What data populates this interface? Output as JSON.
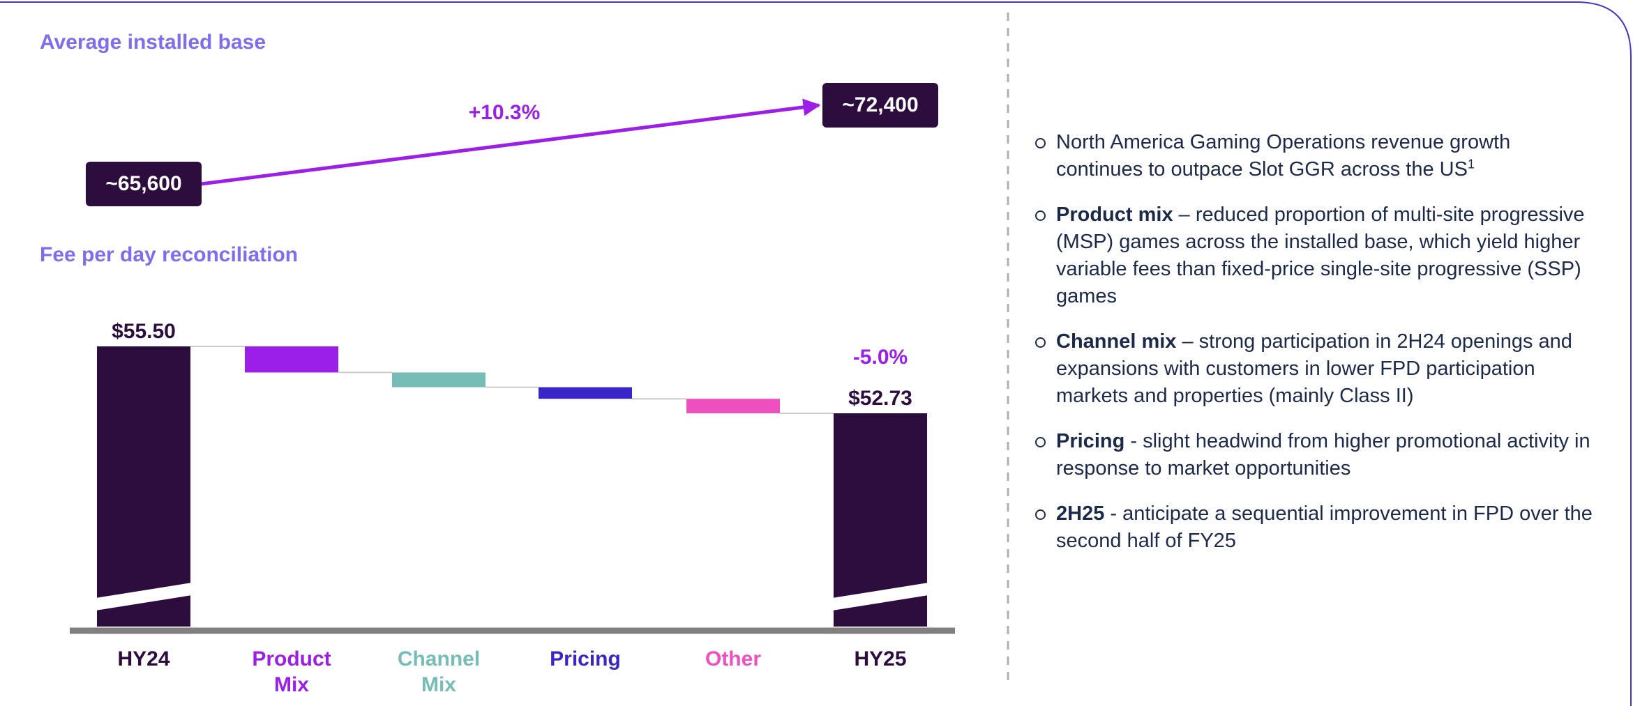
{
  "chart_data": [
    {
      "type": "line",
      "title": "Average installed base",
      "values": [
        65600,
        72400
      ],
      "value_labels": [
        "~65,600",
        "~72,400"
      ],
      "annotation": "+10.3%",
      "color": "#9b1fe8",
      "label_color": "#2d0c3e"
    },
    {
      "type": "waterfall",
      "title": "Fee per day reconciliation",
      "categories": [
        "HY24",
        "Product Mix",
        "Channel Mix",
        "Pricing",
        "Other",
        "HY25"
      ],
      "values": [
        55.5,
        -1.08,
        -0.61,
        -0.48,
        -0.6,
        52.73
      ],
      "value_labels": [
        "$55.50",
        null,
        null,
        null,
        null,
        "$52.73"
      ],
      "measure": [
        "total",
        "relative",
        "relative",
        "relative",
        "relative",
        "total"
      ],
      "colors": [
        "#2d0c3e",
        "#9b1fe8",
        "#76bdb8",
        "#3a25c8",
        "#f04fbf",
        "#2d0c3e"
      ],
      "annotation": "-5.0%",
      "axis_break": true
    }
  ],
  "bullets": [
    {
      "text": "North America Gaming Operations revenue growth continues to outpace Slot GGR across the US",
      "sup": "1"
    },
    {
      "bold": "Product mix",
      "text": "– reduced proportion of multi-site progressive (MSP) games across the installed base, which yield higher variable fees than fixed-price single-site progressive (SSP) games"
    },
    {
      "bold": "Channel mix",
      "text": "– strong participation in 2H24 openings and expansions with customers in lower FPD participation markets and properties (mainly Class II)"
    },
    {
      "bold": "Pricing",
      "text": "- slight headwind from higher promotional activity in response to market opportunities"
    },
    {
      "bold": "2H25",
      "text": "- anticipate a sequential improvement in FPD over the second half of FY25"
    }
  ]
}
